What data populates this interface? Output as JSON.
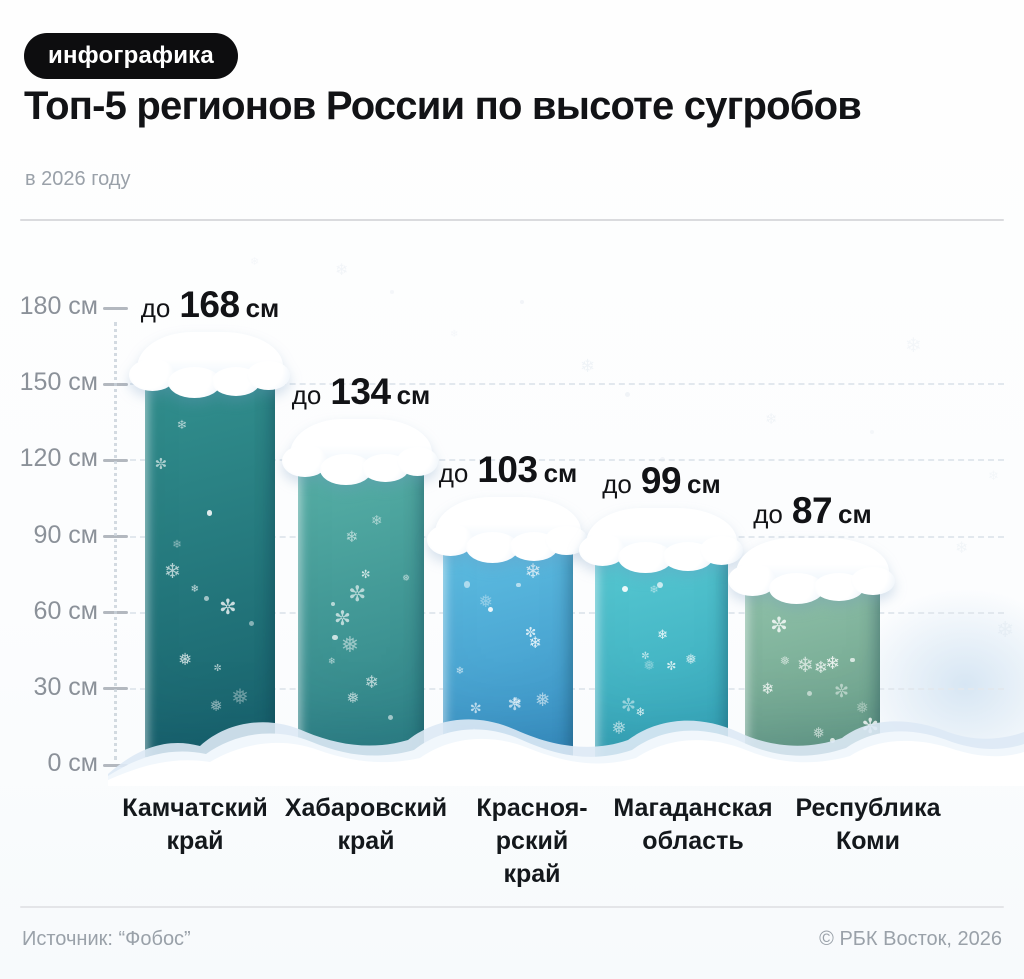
{
  "badge": {
    "label": "инфографика"
  },
  "header": {
    "title": "Топ-5 регионов России по высоте сугробов",
    "subtitle": "в 2026 году"
  },
  "footer": {
    "source": "Источник: “Фобос”",
    "credit": "© РБК Восток, 2026"
  },
  "chart_data": {
    "type": "bar",
    "title": "Топ-5 регионов России по высоте сугробов",
    "subtitle": "в 2026 году",
    "unit": "см",
    "value_prefix": "до",
    "categories": [
      "Камчатский край",
      "Хабаровский край",
      "Красноярский край",
      "Магаданская область",
      "Республика Коми"
    ],
    "category_display_lines": [
      [
        "Камчатский",
        "край"
      ],
      [
        "Хабаровский",
        "край"
      ],
      [
        "Красноя-",
        "рский",
        "край"
      ],
      [
        "Магаданская",
        "область"
      ],
      [
        "Республика",
        "Коми"
      ]
    ],
    "values": [
      168,
      134,
      103,
      99,
      87
    ],
    "value_labels": [
      "до 168 см",
      "до 134 см",
      "до 103 см",
      "до 99 см",
      "до 87 см"
    ],
    "ylim": [
      0,
      180
    ],
    "yticks": [
      180,
      150,
      120,
      90,
      60,
      30,
      0
    ],
    "ytick_labels": [
      "180 см",
      "150 см",
      "120 см",
      "90 см",
      "60 см",
      "30 см",
      "0 см"
    ],
    "grid": "dashed-horizontal",
    "legend": "none",
    "bar_gradients": [
      [
        "#33918f",
        "#17616c"
      ],
      [
        "#58b1a7",
        "#2d8186"
      ],
      [
        "#60c0e3",
        "#3a92c6"
      ],
      [
        "#58cad3",
        "#35a6ba"
      ],
      [
        "#92c3ab",
        "#689e88"
      ]
    ],
    "snow_color": "#ffffff"
  }
}
